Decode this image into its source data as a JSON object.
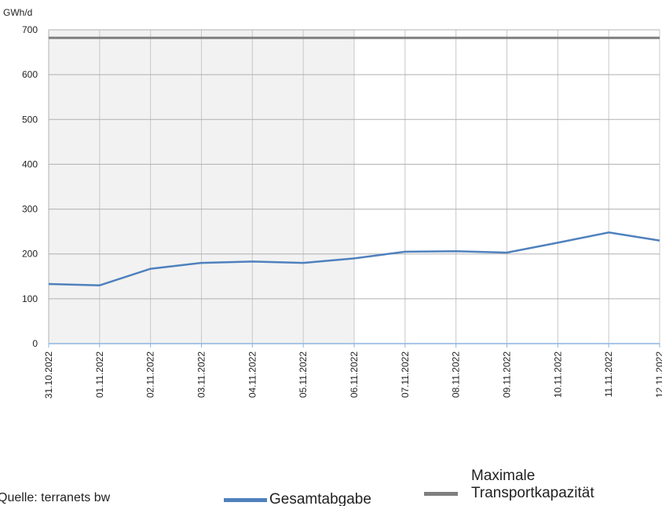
{
  "chart_data": {
    "type": "line",
    "y_axis_label": "GWh/d",
    "categories": [
      "31.10.2022",
      "01.11.2022",
      "02.11.2022",
      "03.11.2022",
      "04.11.2022",
      "05.11.2022",
      "06.11.2022",
      "07.11.2022",
      "08.11.2022",
      "09.11.2022",
      "10.11.2022",
      "11.11.2022",
      "12.11.2022"
    ],
    "series": [
      {
        "name": "Gesamtabgabe",
        "color": "#4f81bd",
        "values": [
          133,
          130,
          167,
          180,
          183,
          180,
          190,
          205,
          206,
          203,
          225,
          248,
          230
        ]
      },
      {
        "name": "Maximale Transportkapazität",
        "color": "#7f7f7f",
        "values": [
          682,
          682,
          682,
          682,
          682,
          682,
          682,
          682,
          682,
          682,
          682,
          682,
          682
        ]
      }
    ],
    "ylim": [
      0,
      700
    ],
    "yticks": [
      0,
      100,
      200,
      300,
      400,
      500,
      600,
      700
    ],
    "grid": true,
    "source": "Quelle: terranets bw"
  }
}
